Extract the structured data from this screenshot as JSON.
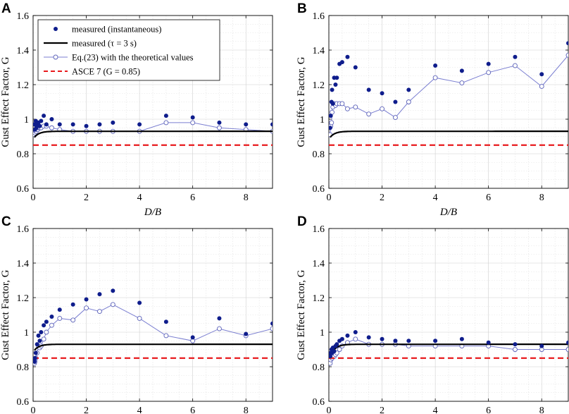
{
  "figure": {
    "colors": {
      "measured_marker": "#0f1d8c",
      "eq23_line": "#7b7fd1",
      "eq23_marker": "#5a60b8",
      "measured_tau": "#000000",
      "asce": "#e8191c",
      "grid": "#cfcfcf",
      "axis": "#000000"
    },
    "legend": {
      "entries": [
        {
          "key": "measured_inst",
          "label": "measured (instantaneous)"
        },
        {
          "key": "measured_tau",
          "label": "measured (τ = 3 s)"
        },
        {
          "key": "eq23",
          "label": "Eq.(23) with the theoretical values"
        },
        {
          "key": "asce",
          "label": "ASCE 7 (G = 0.85)"
        }
      ],
      "placement": "top-left of panel A"
    }
  },
  "chart_data": [
    {
      "panel": "A",
      "type": "scatter",
      "xlabel": "D/B",
      "ylabel": "Gust Effect Factor, G",
      "xlim": [
        0,
        9
      ],
      "ylim": [
        0.6,
        1.6
      ],
      "xticks": [
        "0",
        "2",
        "4",
        "6",
        "8"
      ],
      "yticks": [
        "0.6",
        "0.8",
        "1",
        "1.2",
        "1.4",
        "1.6"
      ],
      "grid": true,
      "series": [
        {
          "name": "measured (instantaneous)",
          "kind": "dots",
          "x": [
            0.05,
            0.07,
            0.1,
            0.12,
            0.15,
            0.18,
            0.2,
            0.25,
            0.3,
            0.4,
            0.5,
            0.7,
            1,
            1.5,
            2,
            2.5,
            3,
            4,
            5,
            6,
            7,
            8,
            9
          ],
          "y": [
            0.97,
            0.94,
            0.99,
            0.95,
            0.97,
            0.98,
            0.98,
            0.96,
            0.99,
            1.02,
            0.97,
            1.0,
            0.97,
            0.97,
            0.96,
            0.97,
            0.98,
            0.97,
            1.02,
            1.01,
            0.98,
            0.97,
            0.97
          ]
        },
        {
          "name": "Eq.(23) with the theoretical values",
          "kind": "line-circles",
          "x": [
            0.05,
            0.07,
            0.1,
            0.12,
            0.15,
            0.18,
            0.2,
            0.25,
            0.3,
            0.4,
            0.5,
            0.7,
            1,
            1.5,
            2,
            2.5,
            3,
            4,
            5,
            6,
            7,
            8,
            9
          ],
          "y": [
            0.91,
            0.92,
            0.93,
            0.93,
            0.94,
            0.94,
            0.95,
            0.95,
            0.95,
            0.96,
            0.96,
            0.95,
            0.94,
            0.93,
            0.93,
            0.93,
            0.93,
            0.93,
            0.98,
            0.98,
            0.95,
            0.94,
            0.93
          ]
        },
        {
          "name": "measured (τ = 3 s)",
          "kind": "tau-curve",
          "plateau": 0.93,
          "start": 0.895
        },
        {
          "name": "ASCE 7 (G = 0.85)",
          "kind": "hline",
          "value": 0.85
        }
      ]
    },
    {
      "panel": "B",
      "type": "scatter",
      "xlabel": "D/B",
      "ylabel": "Gust Effect Factor, G",
      "xlim": [
        0,
        9
      ],
      "ylim": [
        0.6,
        1.6
      ],
      "xticks": [
        "0",
        "2",
        "4",
        "6",
        "8"
      ],
      "yticks": [
        "0.6",
        "0.8",
        "1",
        "1.2",
        "1.4",
        "1.6"
      ],
      "grid": true,
      "series": [
        {
          "name": "measured (instantaneous)",
          "kind": "dots",
          "x": [
            0.05,
            0.07,
            0.1,
            0.12,
            0.15,
            0.2,
            0.25,
            0.3,
            0.4,
            0.5,
            0.7,
            1,
            1.5,
            2,
            2.5,
            3,
            4,
            5,
            6,
            7,
            8,
            9
          ],
          "y": [
            0.95,
            1.02,
            1.1,
            1.17,
            1.09,
            1.24,
            1.2,
            1.24,
            1.32,
            1.33,
            1.36,
            1.3,
            1.17,
            1.15,
            1.1,
            1.17,
            1.31,
            1.28,
            1.32,
            1.36,
            1.26,
            1.44
          ]
        },
        {
          "name": "Eq.(23) with the theoretical values",
          "kind": "line-circles",
          "x": [
            0.05,
            0.07,
            0.1,
            0.12,
            0.15,
            0.2,
            0.25,
            0.3,
            0.4,
            0.5,
            0.7,
            1,
            1.5,
            2,
            2.5,
            3,
            4,
            5,
            6,
            7,
            8,
            9
          ],
          "y": [
            0.91,
            0.96,
            0.98,
            1.04,
            1.07,
            1.09,
            1.08,
            1.09,
            1.09,
            1.09,
            1.06,
            1.07,
            1.03,
            1.06,
            1.01,
            1.1,
            1.24,
            1.21,
            1.27,
            1.31,
            1.19,
            1.37
          ]
        },
        {
          "name": "measured (τ = 3 s)",
          "kind": "tau-curve",
          "plateau": 0.93,
          "start": 0.895
        },
        {
          "name": "ASCE 7 (G = 0.85)",
          "kind": "hline",
          "value": 0.85
        }
      ]
    },
    {
      "panel": "C",
      "type": "scatter",
      "xlabel": "D/B",
      "ylabel": "Gust Effect Factor, G",
      "xlim": [
        0,
        9
      ],
      "ylim": [
        0.6,
        1.6
      ],
      "xticks": [
        "0",
        "2",
        "4",
        "6",
        "8"
      ],
      "yticks": [
        "0.6",
        "0.8",
        "1",
        "1.2",
        "1.4",
        "1.6"
      ],
      "grid": true,
      "series": [
        {
          "name": "measured (instantaneous)",
          "kind": "dots",
          "x": [
            0.05,
            0.07,
            0.1,
            0.15,
            0.2,
            0.25,
            0.3,
            0.4,
            0.5,
            0.7,
            1,
            1.5,
            2,
            2.5,
            3,
            4,
            5,
            6,
            7,
            8,
            9
          ],
          "y": [
            0.83,
            0.85,
            0.88,
            0.93,
            0.98,
            0.95,
            1.0,
            1.04,
            1.06,
            1.09,
            1.13,
            1.16,
            1.19,
            1.22,
            1.24,
            1.17,
            1.06,
            0.97,
            1.08,
            0.99,
            1.05
          ]
        },
        {
          "name": "Eq.(23) with the theoretical values",
          "kind": "line-circles",
          "x": [
            0.05,
            0.07,
            0.1,
            0.15,
            0.2,
            0.25,
            0.3,
            0.4,
            0.5,
            0.7,
            1,
            1.5,
            2,
            2.5,
            3,
            4,
            5,
            6,
            7,
            8,
            9
          ],
          "y": [
            0.82,
            0.83,
            0.85,
            0.88,
            0.92,
            0.91,
            0.92,
            0.96,
            1.0,
            1.04,
            1.08,
            1.07,
            1.14,
            1.12,
            1.16,
            1.08,
            0.98,
            0.95,
            1.02,
            0.98,
            1.02
          ]
        },
        {
          "name": "measured (τ = 3 s)",
          "kind": "tau-curve",
          "plateau": 0.93,
          "start": 0.895
        },
        {
          "name": "ASCE 7 (G = 0.85)",
          "kind": "hline",
          "value": 0.85
        }
      ]
    },
    {
      "panel": "D",
      "type": "scatter",
      "xlabel": "D/B",
      "ylabel": "Gust Effect Factor, G",
      "xlim": [
        0,
        9
      ],
      "ylim": [
        0.6,
        1.6
      ],
      "xticks": [
        "0",
        "2",
        "4",
        "6",
        "8"
      ],
      "yticks": [
        "0.6",
        "0.8",
        "1",
        "1.2",
        "1.4",
        "1.6"
      ],
      "grid": true,
      "series": [
        {
          "name": "measured (instantaneous)",
          "kind": "dots",
          "x": [
            0.05,
            0.07,
            0.1,
            0.12,
            0.15,
            0.2,
            0.25,
            0.3,
            0.4,
            0.5,
            0.7,
            1,
            1.5,
            2,
            2.5,
            3,
            4,
            5,
            6,
            7,
            8,
            9
          ],
          "y": [
            0.86,
            0.88,
            0.9,
            0.88,
            0.91,
            0.89,
            0.92,
            0.93,
            0.95,
            0.96,
            0.98,
            1.0,
            0.97,
            0.96,
            0.95,
            0.95,
            0.95,
            0.96,
            0.94,
            0.93,
            0.92,
            0.94
          ]
        },
        {
          "name": "Eq.(23) with the theoretical values",
          "kind": "line-circles",
          "x": [
            0.05,
            0.07,
            0.1,
            0.12,
            0.15,
            0.2,
            0.25,
            0.3,
            0.4,
            0.5,
            0.7,
            1,
            1.5,
            2,
            2.5,
            3,
            4,
            5,
            6,
            7,
            8,
            9
          ],
          "y": [
            0.82,
            0.84,
            0.86,
            0.85,
            0.87,
            0.86,
            0.87,
            0.88,
            0.9,
            0.92,
            0.94,
            0.96,
            0.93,
            0.93,
            0.93,
            0.92,
            0.92,
            0.92,
            0.92,
            0.9,
            0.9,
            0.9
          ]
        },
        {
          "name": "measured (τ = 3 s)",
          "kind": "tau-curve",
          "plateau": 0.93,
          "start": 0.86
        },
        {
          "name": "ASCE 7 (G = 0.85)",
          "kind": "hline",
          "value": 0.85
        }
      ]
    }
  ]
}
